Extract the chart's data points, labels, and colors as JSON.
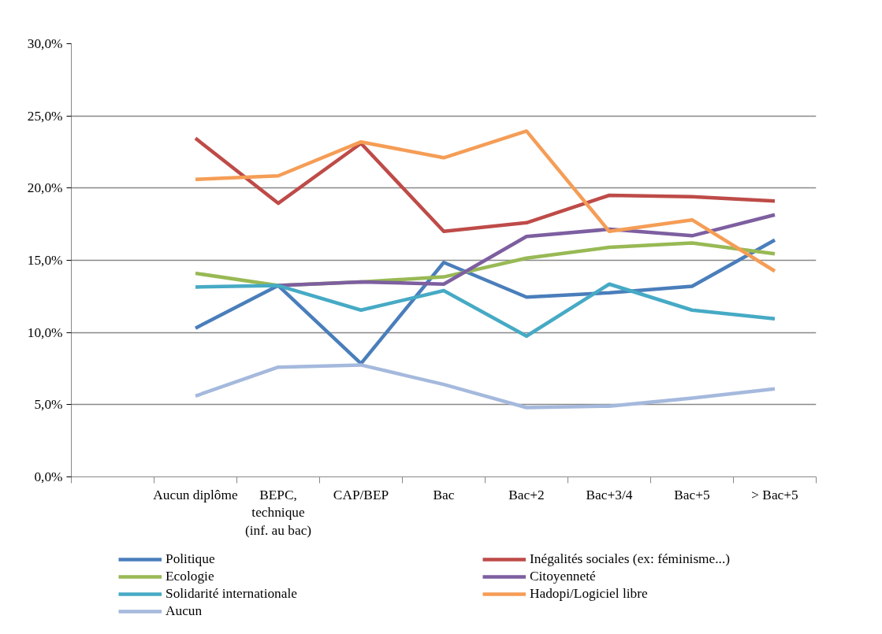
{
  "chart_data": {
    "type": "line",
    "categories": [
      null,
      "Aucun diplôme",
      "BEPC, technique (inf. au bac)",
      "CAP/BEP",
      "Bac",
      "Bac+2",
      "Bac+3/4",
      "Bac+5",
      "> Bac+5"
    ],
    "series": [
      {
        "name": "Politique",
        "color": "#4a7ebb",
        "values": [
          null,
          10.3,
          13.25,
          7.85,
          14.85,
          12.45,
          12.75,
          13.2,
          16.4
        ]
      },
      {
        "name": "Inégalités sociales (ex: féminisme...)",
        "color": "#be4b48",
        "values": [
          null,
          23.45,
          18.95,
          23.1,
          17.0,
          17.6,
          19.5,
          19.4,
          19.1
        ]
      },
      {
        "name": "Ecologie",
        "color": "#98b954",
        "values": [
          null,
          14.1,
          13.25,
          13.5,
          13.85,
          15.15,
          15.9,
          16.2,
          15.45
        ]
      },
      {
        "name": "Citoyenneté",
        "color": "#7d5fa0",
        "values": [
          null,
          null,
          13.25,
          13.5,
          13.35,
          16.65,
          17.15,
          16.7,
          18.15
        ]
      },
      {
        "name": "Solidarité internationale",
        "color": "#46aac5",
        "values": [
          null,
          13.15,
          13.25,
          11.55,
          12.9,
          9.75,
          13.35,
          11.55,
          10.95
        ]
      },
      {
        "name": "Hadopi/Logiciel libre",
        "color": "#f59d56",
        "values": [
          null,
          20.6,
          20.85,
          23.2,
          22.1,
          23.95,
          17.0,
          17.8,
          14.25
        ]
      },
      {
        "name": "Aucun",
        "color": "#a5b9dd",
        "values": [
          null,
          5.6,
          7.6,
          7.75,
          6.4,
          4.8,
          4.9,
          5.45,
          6.1
        ]
      }
    ],
    "ylim": [
      0,
      30
    ],
    "yticks": [
      {
        "value": 0,
        "label": "0,0%"
      },
      {
        "value": 5,
        "label": "5,0%"
      },
      {
        "value": 10,
        "label": "10,0%"
      },
      {
        "value": 15,
        "label": "15,0%"
      },
      {
        "value": 20,
        "label": "20,0%"
      },
      {
        "value": 25,
        "label": "25,0%"
      },
      {
        "value": 30,
        "label": "30,0%"
      }
    ],
    "grid": "y",
    "legend": "bottom",
    "marker": "none",
    "line_style": "solid"
  }
}
